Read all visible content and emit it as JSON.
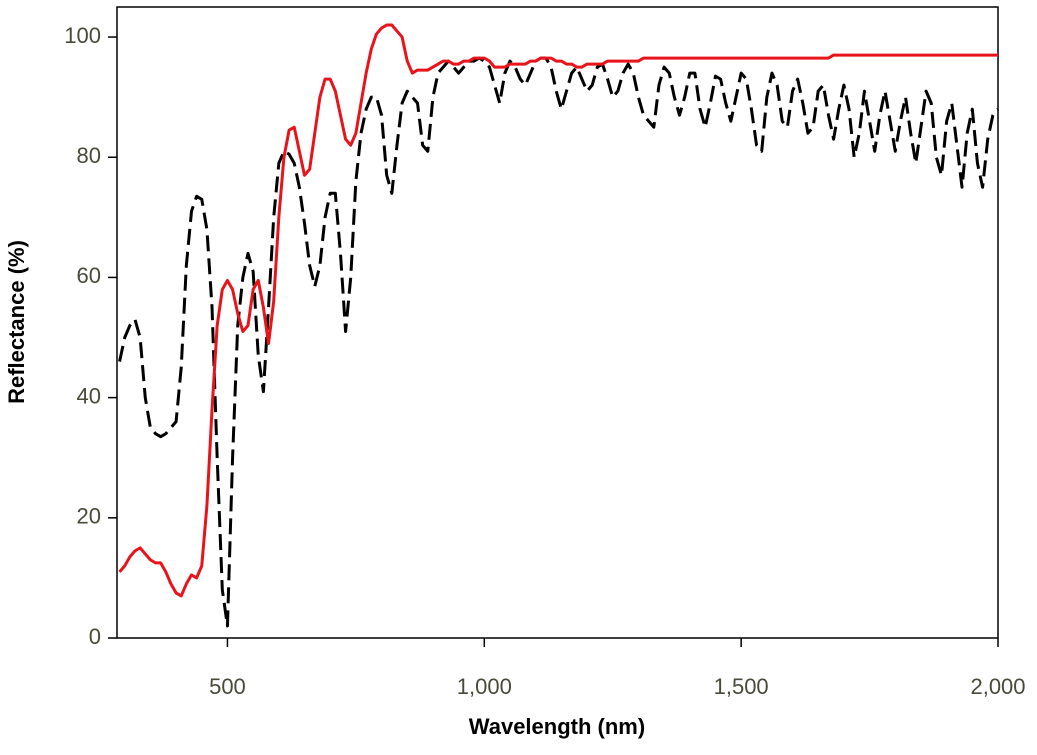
{
  "chart_data": {
    "type": "line",
    "x_label": "Wavelength (nm)",
    "y_label": "Reflectance (%)",
    "xlim": [
      285,
      2000
    ],
    "ylim": [
      0,
      105
    ],
    "xticks": [
      500,
      {
        "value": 1000,
        "label": "1,000"
      },
      {
        "value": 1500,
        "label": "1,500"
      },
      {
        "value": 2000,
        "label": "2,000"
      }
    ],
    "yticks": [
      0,
      20,
      40,
      60,
      80,
      100
    ],
    "grid": false,
    "x": [
      290,
      300,
      310,
      320,
      330,
      340,
      350,
      360,
      370,
      380,
      390,
      400,
      410,
      420,
      430,
      440,
      450,
      460,
      470,
      480,
      490,
      500,
      510,
      520,
      530,
      540,
      550,
      560,
      570,
      580,
      590,
      600,
      610,
      620,
      630,
      640,
      650,
      660,
      670,
      680,
      690,
      700,
      710,
      720,
      730,
      740,
      750,
      760,
      770,
      780,
      790,
      800,
      810,
      820,
      830,
      840,
      850,
      860,
      870,
      880,
      890,
      900,
      910,
      920,
      930,
      940,
      950,
      960,
      970,
      980,
      990,
      1000,
      1010,
      1020,
      1030,
      1040,
      1050,
      1060,
      1070,
      1080,
      1090,
      1100,
      1110,
      1120,
      1130,
      1140,
      1150,
      1160,
      1170,
      1180,
      1190,
      1200,
      1210,
      1220,
      1230,
      1240,
      1250,
      1260,
      1270,
      1280,
      1290,
      1300,
      1310,
      1320,
      1330,
      1340,
      1350,
      1360,
      1370,
      1380,
      1390,
      1400,
      1410,
      1420,
      1430,
      1440,
      1450,
      1460,
      1470,
      1480,
      1490,
      1500,
      1510,
      1520,
      1530,
      1540,
      1550,
      1560,
      1570,
      1580,
      1590,
      1600,
      1610,
      1620,
      1630,
      1640,
      1650,
      1660,
      1670,
      1680,
      1690,
      1700,
      1710,
      1720,
      1730,
      1740,
      1750,
      1760,
      1770,
      1780,
      1790,
      1800,
      1810,
      1820,
      1830,
      1840,
      1850,
      1860,
      1870,
      1880,
      1890,
      1900,
      1910,
      1920,
      1930,
      1940,
      1950,
      1960,
      1970,
      1980,
      1990,
      2000
    ],
    "series": [
      {
        "color": "#e8141b",
        "dash": "solid",
        "values": [
          11,
          12,
          13.5,
          14.5,
          15,
          14,
          13,
          12.5,
          12.5,
          11,
          9,
          7.5,
          7,
          9,
          10.5,
          10,
          12,
          22,
          38,
          52,
          58,
          59.5,
          58,
          54,
          51,
          52,
          58,
          59.5,
          55,
          49,
          56,
          70,
          80,
          84.5,
          85,
          81,
          77,
          78,
          84,
          90,
          93,
          93,
          91,
          87,
          83,
          82,
          84,
          89,
          94,
          98,
          100.5,
          101.5,
          102,
          102,
          101,
          100,
          96,
          94,
          94.5,
          94.5,
          94.5,
          95,
          95.5,
          96,
          96,
          95.5,
          95.5,
          96,
          96,
          96.5,
          96.5,
          96.5,
          96,
          95,
          95,
          95,
          95.5,
          95.5,
          95.5,
          95.5,
          96,
          96,
          96.5,
          96.5,
          96.5,
          96,
          96,
          95.5,
          95.5,
          95,
          95,
          95.5,
          95.5,
          95.5,
          95.5,
          96,
          96,
          96,
          96,
          96,
          96,
          96,
          96.5,
          96.5,
          96.5,
          96.5,
          96.5,
          96.5,
          96.5,
          96.5,
          96.5,
          96.5,
          96.5,
          96.5,
          96.5,
          96.5,
          96.5,
          96.5,
          96.5,
          96.5,
          96.5,
          96.5,
          96.5,
          96.5,
          96.5,
          96.5,
          96.5,
          96.5,
          96.5,
          96.5,
          96.5,
          96.5,
          96.5,
          96.5,
          96.5,
          96.5,
          96.5,
          96.5,
          96.5,
          97,
          97,
          97,
          97,
          97,
          97,
          97,
          97,
          97,
          97,
          97,
          97,
          97,
          97,
          97,
          97,
          97,
          97,
          97,
          97,
          97,
          97,
          97,
          97,
          97,
          97,
          97,
          97,
          97,
          97,
          97,
          97,
          97
        ]
      },
      {
        "color": "#000000",
        "dash": "dashed",
        "values": [
          46,
          50,
          52,
          53,
          50,
          40,
          35,
          34,
          33.5,
          34,
          35,
          36,
          45,
          62,
          71,
          73.5,
          73,
          68,
          55,
          30,
          8,
          2,
          30,
          52,
          60,
          64,
          61,
          47,
          41,
          55,
          70,
          79,
          81,
          80.5,
          79,
          75,
          69,
          62,
          58.5,
          62,
          70,
          74,
          74,
          64,
          51,
          60,
          76,
          84,
          88,
          90,
          90,
          87,
          77,
          74,
          82,
          89,
          91,
          90,
          89,
          82,
          81,
          90,
          94,
          95,
          96,
          95,
          94,
          95,
          96,
          96,
          96.5,
          96,
          95,
          92,
          89,
          94,
          96,
          95,
          93,
          92,
          94,
          96,
          96.5,
          96.5,
          95,
          91,
          88,
          91,
          94,
          95,
          93,
          91,
          92,
          95,
          95.5,
          93,
          90,
          91,
          94,
          95.5,
          94,
          90,
          87,
          86,
          85,
          92,
          95,
          94,
          90,
          87,
          90,
          94,
          94,
          88,
          85,
          89,
          93.5,
          93,
          89,
          86,
          90,
          94,
          93,
          88,
          82,
          81,
          90,
          94,
          92,
          86,
          85,
          91,
          93,
          89,
          84,
          85,
          91,
          92,
          87,
          83,
          88,
          92,
          88,
          80,
          84,
          91,
          86,
          81,
          87,
          91,
          86,
          81,
          86,
          90,
          84,
          79,
          85,
          91,
          89,
          80,
          77,
          86,
          89,
          82,
          75,
          84,
          88,
          79,
          75,
          83,
          87,
          88
        ]
      }
    ]
  }
}
